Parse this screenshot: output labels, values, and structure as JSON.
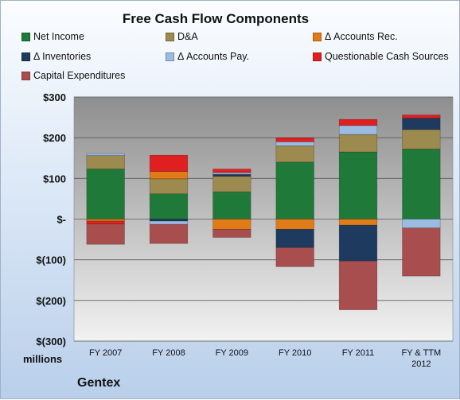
{
  "chart_data": {
    "type": "bar",
    "stacked": true,
    "title": "Free Cash Flow Components",
    "company": "Gentex",
    "units_label": "millions",
    "categories": [
      "FY 2007",
      "FY 2008",
      "FY 2009",
      "FY 2010",
      "FY 2011",
      "FY & TTM 2012"
    ],
    "category_lines": [
      [
        "FY 2007"
      ],
      [
        "FY 2008"
      ],
      [
        "FY 2009"
      ],
      [
        "FY 2010"
      ],
      [
        "FY 2011"
      ],
      [
        "FY & TTM",
        "2012"
      ]
    ],
    "ylim": [
      -300,
      300
    ],
    "yticks": [
      300,
      200,
      100,
      0,
      -100,
      -200,
      -300
    ],
    "ytick_labels": [
      "$300",
      "$200",
      "$100",
      "$-",
      "$(100)",
      "$(200)",
      "$(300)"
    ],
    "grid": true,
    "legend_position": "top",
    "series": [
      {
        "name": "Net Income",
        "color": "#1f7a3a",
        "values": [
          123,
          62,
          67,
          140,
          165,
          172
        ]
      },
      {
        "name": "D&A",
        "color": "#9c8a4e",
        "values": [
          33,
          37,
          38,
          40,
          43,
          48
        ]
      },
      {
        "name": "Δ Accounts Rec.",
        "color": "#e07b17",
        "values": [
          -5,
          18,
          -25,
          -25,
          -15,
          0
        ]
      },
      {
        "name": "Δ Inventories",
        "color": "#1f3a5f",
        "values": [
          0,
          -5,
          5,
          -45,
          -88,
          28
        ]
      },
      {
        "name": "Δ Accounts Pay.",
        "color": "#9bbbe0",
        "values": [
          5,
          -8,
          4,
          10,
          22,
          -22
        ]
      },
      {
        "name": "Questionable Cash Sources",
        "color": "#e02020",
        "values": [
          -7,
          40,
          9,
          10,
          15,
          8
        ]
      },
      {
        "name": "Capital Expenditures",
        "color": "#a84e4e",
        "values": [
          -50,
          -47,
          -20,
          -47,
          -120,
          -118
        ]
      }
    ]
  }
}
